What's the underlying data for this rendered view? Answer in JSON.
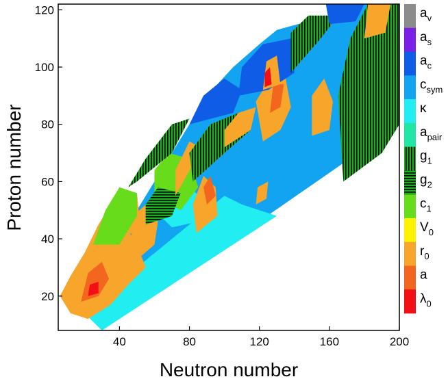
{
  "chart_data": {
    "type": "heatmap",
    "xlabel": "Neutron number",
    "ylabel": "Proton number",
    "xlim": [
      5,
      200
    ],
    "ylim": [
      8,
      122
    ],
    "x_ticks": [
      40,
      80,
      120,
      160,
      200
    ],
    "y_ticks": [
      20,
      40,
      60,
      80,
      100,
      120
    ],
    "legend_placement": "right",
    "legend": [
      {
        "key": "av",
        "base": "a",
        "sub": "v",
        "color": "#8c8c8c"
      },
      {
        "key": "as",
        "base": "a",
        "sub": "s",
        "color": "#7a1fe6"
      },
      {
        "key": "ac",
        "base": "a",
        "sub": "c",
        "color": "#0f5ce6"
      },
      {
        "key": "csym",
        "base": "c",
        "sub": "sym",
        "color": "#12a4f0"
      },
      {
        "key": "kappa",
        "base": "κ",
        "sub": "",
        "color": "#22eef2"
      },
      {
        "key": "apair",
        "base": "a",
        "sub": "pair",
        "color": "#22e6a6"
      },
      {
        "key": "g1",
        "base": "g",
        "sub": "1",
        "color": "#19b21c",
        "hatch": "vertical"
      },
      {
        "key": "g2",
        "base": "g",
        "sub": "2",
        "color": "#19b21c",
        "hatch": "horizontal"
      },
      {
        "key": "c1",
        "base": "c",
        "sub": "1",
        "color": "#66dc1a"
      },
      {
        "key": "V0",
        "base": "V",
        "sub": "0",
        "color": "#fff200"
      },
      {
        "key": "r0",
        "base": "r",
        "sub": "0",
        "color": "#f7a52b"
      },
      {
        "key": "a",
        "base": "a",
        "sub": "",
        "color": "#f2661f"
      },
      {
        "key": "lambda0",
        "base": "λ",
        "sub": "0",
        "color": "#f20f15"
      }
    ],
    "regions": [
      {
        "param": "csym",
        "points": [
          [
            30,
            8
          ],
          [
            200,
            80
          ],
          [
            200,
            122
          ],
          [
            180,
            122
          ],
          [
            160,
            118
          ],
          [
            130,
            113
          ],
          [
            120,
            108
          ],
          [
            105,
            100
          ],
          [
            90,
            90
          ],
          [
            80,
            80
          ],
          [
            70,
            70
          ],
          [
            60,
            60
          ],
          [
            50,
            50
          ],
          [
            40,
            40
          ],
          [
            30,
            30
          ],
          [
            20,
            20
          ]
        ]
      },
      {
        "param": "kappa",
        "points": [
          [
            30,
            8
          ],
          [
            130,
            48
          ],
          [
            110,
            52
          ],
          [
            100,
            55
          ],
          [
            90,
            50
          ],
          [
            80,
            45
          ],
          [
            70,
            40
          ],
          [
            60,
            35
          ],
          [
            50,
            30
          ],
          [
            40,
            25
          ],
          [
            30,
            20
          ],
          [
            20,
            14
          ]
        ]
      },
      {
        "param": "kappa",
        "points": [
          [
            60,
            50
          ],
          [
            70,
            44
          ],
          [
            85,
            46
          ],
          [
            95,
            50
          ],
          [
            80,
            58
          ],
          [
            70,
            60
          ]
        ]
      },
      {
        "param": "r0",
        "points": [
          [
            6,
            20
          ],
          [
            12,
            14
          ],
          [
            22,
            12
          ],
          [
            35,
            17
          ],
          [
            45,
            24
          ],
          [
            55,
            30
          ],
          [
            50,
            38
          ],
          [
            42,
            46
          ],
          [
            35,
            52
          ],
          [
            28,
            45
          ],
          [
            20,
            35
          ],
          [
            12,
            27
          ]
        ]
      },
      {
        "param": "r0",
        "points": [
          [
            45,
            30
          ],
          [
            60,
            38
          ],
          [
            62,
            46
          ],
          [
            55,
            52
          ],
          [
            48,
            48
          ]
        ]
      },
      {
        "param": "a",
        "points": [
          [
            18,
            18
          ],
          [
            28,
            20
          ],
          [
            34,
            26
          ],
          [
            30,
            32
          ],
          [
            22,
            28
          ]
        ]
      },
      {
        "param": "lambda0",
        "points": [
          [
            22,
            20
          ],
          [
            28,
            21
          ],
          [
            28,
            25
          ],
          [
            23,
            24
          ]
        ]
      },
      {
        "param": "r0",
        "points": [
          [
            42,
            40
          ],
          [
            52,
            44
          ],
          [
            50,
            56
          ],
          [
            44,
            54
          ],
          [
            40,
            46
          ]
        ]
      },
      {
        "param": "c1",
        "points": [
          [
            25,
            38
          ],
          [
            40,
            38
          ],
          [
            50,
            48
          ],
          [
            50,
            56
          ],
          [
            40,
            58
          ],
          [
            32,
            50
          ]
        ]
      },
      {
        "param": "c1",
        "points": [
          [
            60,
            55
          ],
          [
            75,
            50
          ],
          [
            85,
            58
          ],
          [
            80,
            68
          ],
          [
            68,
            70
          ],
          [
            60,
            64
          ]
        ]
      },
      {
        "param": "g1",
        "points": [
          [
            50,
            60
          ],
          [
            70,
            70
          ],
          [
            80,
            82
          ],
          [
            70,
            80
          ],
          [
            55,
            68
          ],
          [
            45,
            58
          ]
        ]
      },
      {
        "param": "g2",
        "points": [
          [
            55,
            45
          ],
          [
            70,
            48
          ],
          [
            75,
            56
          ],
          [
            62,
            58
          ],
          [
            55,
            52
          ]
        ]
      },
      {
        "param": "r0",
        "points": [
          [
            72,
            55
          ],
          [
            82,
            66
          ],
          [
            86,
            72
          ],
          [
            80,
            74
          ],
          [
            72,
            64
          ]
        ]
      },
      {
        "param": "r0",
        "points": [
          [
            84,
            42
          ],
          [
            96,
            48
          ],
          [
            95,
            58
          ],
          [
            88,
            62
          ],
          [
            82,
            52
          ]
        ]
      },
      {
        "param": "a",
        "points": [
          [
            90,
            52
          ],
          [
            95,
            55
          ],
          [
            92,
            62
          ],
          [
            88,
            58
          ]
        ]
      },
      {
        "param": "g1",
        "points": [
          [
            82,
            60
          ],
          [
            100,
            70
          ],
          [
            115,
            78
          ],
          [
            108,
            84
          ],
          [
            92,
            80
          ],
          [
            80,
            70
          ]
        ]
      },
      {
        "param": "ac",
        "points": [
          [
            80,
            80
          ],
          [
            105,
            84
          ],
          [
            110,
            92
          ],
          [
            100,
            96
          ],
          [
            88,
            90
          ]
        ]
      },
      {
        "param": "r0",
        "points": [
          [
            100,
            72
          ],
          [
            115,
            78
          ],
          [
            118,
            86
          ],
          [
            108,
            84
          ],
          [
            100,
            78
          ]
        ]
      },
      {
        "param": "r0",
        "points": [
          [
            122,
            74
          ],
          [
            132,
            78
          ],
          [
            138,
            86
          ],
          [
            135,
            96
          ],
          [
            126,
            96
          ],
          [
            118,
            88
          ]
        ]
      },
      {
        "param": "a",
        "points": [
          [
            126,
            84
          ],
          [
            132,
            86
          ],
          [
            134,
            94
          ],
          [
            128,
            94
          ]
        ]
      },
      {
        "param": "ac",
        "points": [
          [
            108,
            90
          ],
          [
            125,
            92
          ],
          [
            140,
            98
          ],
          [
            138,
            110
          ],
          [
            122,
            108
          ],
          [
            110,
            100
          ]
        ]
      },
      {
        "param": "r0",
        "points": [
          [
            122,
            92
          ],
          [
            132,
            94
          ],
          [
            130,
            104
          ],
          [
            124,
            102
          ]
        ]
      },
      {
        "param": "lambda0",
        "points": [
          [
            123,
            93
          ],
          [
            127,
            94
          ],
          [
            126,
            100
          ],
          [
            123,
            98
          ]
        ]
      },
      {
        "param": "g1",
        "points": [
          [
            138,
            98
          ],
          [
            155,
            110
          ],
          [
            165,
            118
          ],
          [
            148,
            118
          ],
          [
            138,
            112
          ]
        ]
      },
      {
        "param": "g1",
        "points": [
          [
            168,
            60
          ],
          [
            190,
            70
          ],
          [
            200,
            80
          ],
          [
            200,
            122
          ],
          [
            182,
            122
          ],
          [
            172,
            110
          ],
          [
            165,
            90
          ]
        ]
      },
      {
        "param": "ac",
        "points": [
          [
            160,
            115
          ],
          [
            175,
            116
          ],
          [
            180,
            122
          ],
          [
            158,
            122
          ]
        ]
      },
      {
        "param": "r0",
        "points": [
          [
            180,
            110
          ],
          [
            192,
            112
          ],
          [
            195,
            122
          ],
          [
            182,
            122
          ]
        ]
      },
      {
        "param": "r0",
        "points": [
          [
            150,
            76
          ],
          [
            160,
            78
          ],
          [
            162,
            88
          ],
          [
            157,
            96
          ],
          [
            150,
            90
          ]
        ]
      },
      {
        "param": "r0",
        "points": [
          [
            118,
            52
          ],
          [
            124,
            54
          ],
          [
            125,
            60
          ],
          [
            119,
            58
          ]
        ]
      },
      {
        "param": "csym",
        "points": [
          [
            110,
            60
          ],
          [
            130,
            62
          ],
          [
            140,
            70
          ],
          [
            120,
            72
          ],
          [
            105,
            68
          ]
        ]
      }
    ]
  }
}
